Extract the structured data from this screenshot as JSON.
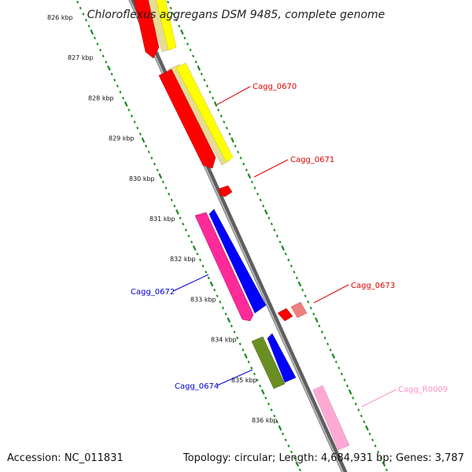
{
  "title": "Chloroflexus aggregans DSM 9485, complete genome",
  "footer": {
    "accession": "Accession: NC_011831",
    "summary": "Topology: circular; Length: 4,684,931 bp; Genes: 3,787"
  },
  "colors": {
    "backbone": "#8a8a8a",
    "tick_dots": "#1a8a1a",
    "red": "#ff0000",
    "yellow": "#ffff00",
    "khaki": "#e6dc96",
    "magenta": "#ff2a9a",
    "blue": "#0000ff",
    "olive": "#6b8e23",
    "pink": "#ffaad4",
    "salmon": "#f08080",
    "label_red": "#e00000",
    "label_blue": "#0000cc",
    "label_pink": "#ff8fc8"
  },
  "ruler": {
    "labels": [
      "826 kbp",
      "827 kbp",
      "828 kbp",
      "829 kbp",
      "830 kbp",
      "831 kbp",
      "832 kbp",
      "833 kbp",
      "834 kbp",
      "835 kbp",
      "836 kbp"
    ]
  },
  "gene_labels": {
    "cagg_0670": "Cagg_0670",
    "cagg_0671": "Cagg_0671",
    "cagg_0672": "Cagg_0672",
    "cagg_0673": "Cagg_0673",
    "cagg_0674": "Cagg_0674",
    "cagg_r0009": "Cagg_R0009"
  }
}
